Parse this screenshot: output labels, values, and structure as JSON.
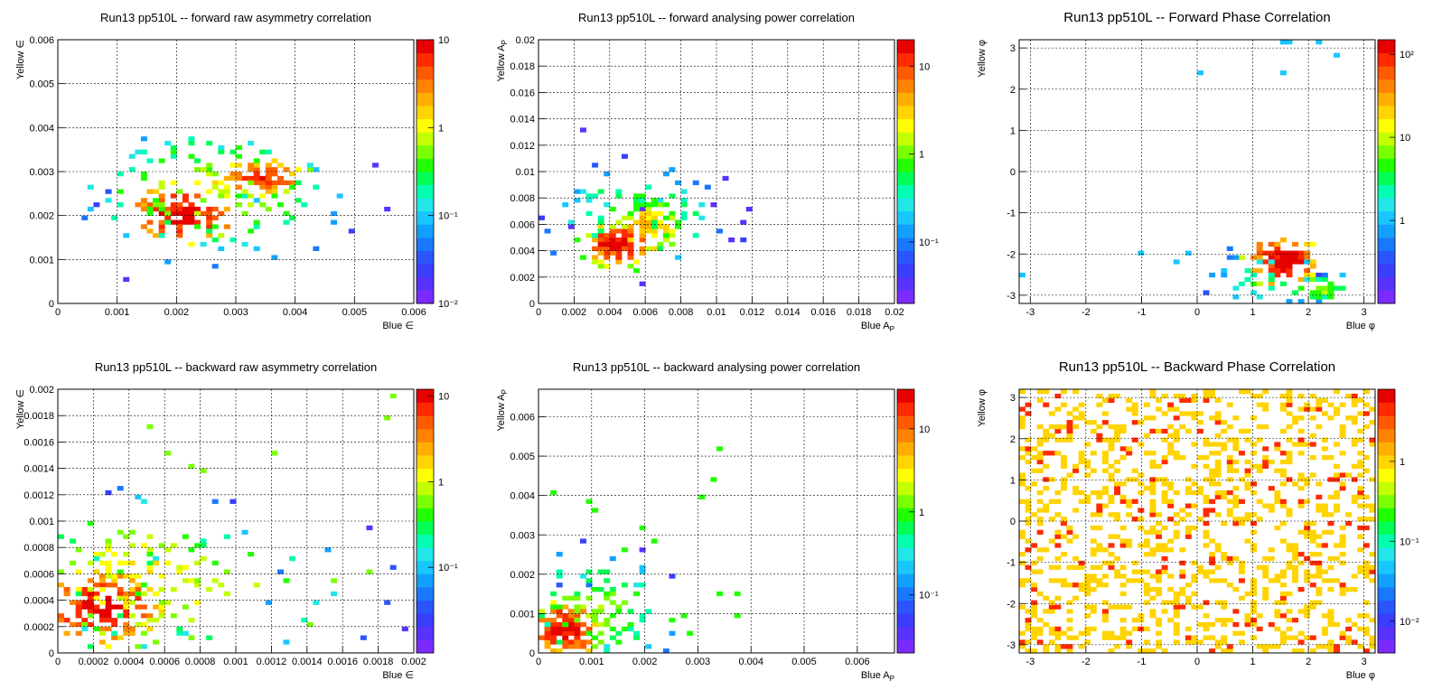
{
  "colors": {
    "palette": [
      "#7b2bff",
      "#5a32ff",
      "#3b3dff",
      "#2a55ff",
      "#1a78ff",
      "#12a0ff",
      "#19c6ff",
      "#22e6e8",
      "#00ffb0",
      "#00ff55",
      "#22ff00",
      "#7aff00",
      "#c4ff00",
      "#ffff00",
      "#ffd400",
      "#ffae00",
      "#ff8200",
      "#ff5a00",
      "#ff2a00",
      "#e60000"
    ],
    "grid": "#000000",
    "frame": "#000000"
  },
  "chart_data": [
    {
      "type": "heatmap",
      "title": "Run13 pp510L -- forward raw asymmetry correlation",
      "xlabel": "Blue ∈",
      "ylabel": "Yellow ∈",
      "xlim": [
        0,
        0.006
      ],
      "ylim": [
        0,
        0.006
      ],
      "x_ticks": [
        "0",
        "0.001",
        "0.002",
        "0.003",
        "0.004",
        "0.005",
        "0.006"
      ],
      "y_ticks": [
        "0",
        "0.001",
        "0.002",
        "0.003",
        "0.004",
        "0.005",
        "0.006"
      ],
      "z_scale": "log",
      "zlim": [
        0.01,
        10
      ],
      "z_ticks": [
        {
          "value": 10,
          "label": "10"
        },
        {
          "value": 1,
          "label": "1"
        },
        {
          "value": 0.1,
          "label": "10⁻¹"
        },
        {
          "value": 0.01,
          "label": "10⁻²"
        }
      ],
      "grid": true,
      "legend": "colorbar-right",
      "clusters": [
        {
          "x": 0.0021,
          "y": 0.00205,
          "sx": 0.00045,
          "sy": 0.00035,
          "peak": 9,
          "n": 90
        },
        {
          "x": 0.0034,
          "y": 0.00285,
          "sx": 0.0004,
          "sy": 0.0002,
          "peak": 6,
          "n": 60
        },
        {
          "x": 0.0026,
          "y": 0.0025,
          "sx": 0.001,
          "sy": 0.0007,
          "peak": 0.8,
          "n": 120
        }
      ]
    },
    {
      "type": "heatmap",
      "title": "Run13 pp510L -- forward analysing power correlation",
      "xlabel": "Blue A_P",
      "ylabel": "Yellow A_P",
      "xlim": [
        0,
        0.02
      ],
      "ylim": [
        0,
        0.02
      ],
      "x_ticks": [
        "0",
        "0.002",
        "0.004",
        "0.006",
        "0.008",
        "0.01",
        "0.012",
        "0.014",
        "0.016",
        "0.018",
        "0.02"
      ],
      "y_ticks": [
        "0",
        "0.002",
        "0.004",
        "0.006",
        "0.008",
        "0.01",
        "0.012",
        "0.014",
        "0.016",
        "0.018",
        "0.02"
      ],
      "z_scale": "log",
      "zlim": [
        0.02,
        20
      ],
      "z_ticks": [
        {
          "value": 10,
          "label": "10"
        },
        {
          "value": 1,
          "label": "1"
        },
        {
          "value": 0.1,
          "label": "10⁻¹"
        }
      ],
      "grid": true,
      "legend": "colorbar-right",
      "clusters": [
        {
          "x": 0.0045,
          "y": 0.0045,
          "sx": 0.001,
          "sy": 0.0008,
          "peak": 15,
          "n": 90
        },
        {
          "x": 0.006,
          "y": 0.0058,
          "sx": 0.0013,
          "sy": 0.001,
          "peak": 4,
          "n": 70
        },
        {
          "x": 0.0055,
          "y": 0.0065,
          "sx": 0.0025,
          "sy": 0.002,
          "peak": 0.8,
          "n": 90
        }
      ]
    },
    {
      "type": "heatmap",
      "title": "Run13 pp510L -- Forward Phase Correlation",
      "xlabel": "Blue φ",
      "ylabel": "Yellow φ",
      "xlim": [
        -3.2,
        3.2
      ],
      "ylim": [
        -3.2,
        3.2
      ],
      "x_ticks": [
        "-3",
        "-2",
        "-1",
        "0",
        "1",
        "2",
        "3"
      ],
      "y_ticks": [
        "-3",
        "-2",
        "-1",
        "0",
        "1",
        "2",
        "3"
      ],
      "z_scale": "log",
      "zlim": [
        0.1,
        150
      ],
      "z_ticks": [
        {
          "value": 100,
          "label": "10²"
        },
        {
          "value": 10,
          "label": "10"
        },
        {
          "value": 1,
          "label": "1"
        }
      ],
      "grid": true,
      "legend": "colorbar-right",
      "clusters": [
        {
          "x": 1.55,
          "y": -2.15,
          "sx": 0.3,
          "sy": 0.3,
          "peak": 140,
          "n": 90
        },
        {
          "x": 2.2,
          "y": -2.85,
          "sx": 0.25,
          "sy": 0.15,
          "peak": 8,
          "n": 30
        },
        {
          "x": 1.3,
          "y": -2.6,
          "sx": 0.6,
          "sy": 0.4,
          "peak": 3,
          "n": 40
        }
      ],
      "points": [
        [
          0.05,
          2.35,
          1.2
        ],
        [
          1.55,
          2.45,
          1.2
        ],
        [
          2.5,
          2.85,
          1.2
        ],
        [
          1.5,
          3.1,
          1.2
        ],
        [
          1.65,
          3.1,
          1.2
        ],
        [
          2.15,
          3.1,
          1.2
        ],
        [
          -1.0,
          -1.95,
          1.2
        ],
        [
          -0.4,
          -2.15,
          1.2
        ],
        [
          -0.2,
          -1.95,
          1.2
        ],
        [
          -3.1,
          -2.55,
          1.2
        ],
        [
          0.5,
          -2.35,
          1.2
        ],
        [
          2.6,
          -2.55,
          1.2
        ],
        [
          1.0,
          -2.95,
          1.5
        ]
      ]
    },
    {
      "type": "heatmap",
      "title": "Run13 pp510L -- backward raw asymmetry correlation",
      "xlabel": "Blue ∈",
      "ylabel": "Yellow ∈",
      "xlim": [
        0,
        0.002
      ],
      "ylim": [
        0,
        0.002
      ],
      "x_ticks": [
        "0",
        "0.0002",
        "0.0004",
        "0.0006",
        "0.0008",
        "0.001",
        "0.0012",
        "0.0014",
        "0.0016",
        "0.0018",
        "0.002"
      ],
      "y_ticks": [
        "0",
        "0.0002",
        "0.0004",
        "0.0006",
        "0.0008",
        "0.001",
        "0.0012",
        "0.0014",
        "0.0016",
        "0.0018",
        "0.002"
      ],
      "z_scale": "log",
      "zlim": [
        0.01,
        12
      ],
      "z_ticks": [
        {
          "value": 10,
          "label": "10"
        },
        {
          "value": 1,
          "label": "1"
        },
        {
          "value": 0.1,
          "label": "10⁻¹"
        }
      ],
      "grid": true,
      "legend": "colorbar-right",
      "clusters": [
        {
          "x": 0.00025,
          "y": 0.00035,
          "sx": 0.00018,
          "sy": 0.00015,
          "peak": 10,
          "n": 120
        },
        {
          "x": 0.00045,
          "y": 0.0005,
          "sx": 0.0003,
          "sy": 0.0003,
          "peak": 1.5,
          "n": 120
        },
        {
          "x": 0.0008,
          "y": 0.0005,
          "sx": 0.00045,
          "sy": 0.0003,
          "peak": 0.7,
          "n": 60
        }
      ],
      "points": [
        [
          0.00188,
          0.00194,
          0.7
        ],
        [
          0.00185,
          0.00178,
          0.7
        ],
        [
          0.0005,
          0.00171,
          0.7
        ],
        [
          0.00075,
          0.00143,
          0.7
        ],
        [
          0.0008,
          0.00138,
          0.7
        ],
        [
          0.0006,
          0.0015,
          0.7
        ],
        [
          0.00122,
          0.0015,
          0.7
        ],
        [
          0.00155,
          0.00055,
          0.7
        ],
        [
          0.0014,
          0.0002,
          0.7
        ],
        [
          0.00175,
          0.0006,
          0.7
        ]
      ]
    },
    {
      "type": "heatmap",
      "title": "Run13 pp510L -- backward analysing power correlation",
      "xlabel": "Blue A_P",
      "ylabel": "Yellow A_P",
      "xlim": [
        0,
        0.0067
      ],
      "ylim": [
        0,
        0.0067
      ],
      "x_ticks": [
        "0",
        "0.001",
        "0.002",
        "0.003",
        "0.004",
        "0.005",
        "0.006"
      ],
      "y_ticks": [
        "0",
        "0.001",
        "0.002",
        "0.003",
        "0.004",
        "0.005",
        "0.006"
      ],
      "z_scale": "log",
      "zlim": [
        0.02,
        30
      ],
      "z_ticks": [
        {
          "value": 10,
          "label": "10"
        },
        {
          "value": 1,
          "label": "1"
        },
        {
          "value": 0.1,
          "label": "10⁻¹"
        }
      ],
      "grid": true,
      "legend": "colorbar-right",
      "clusters": [
        {
          "x": 0.0005,
          "y": 0.0006,
          "sx": 0.0003,
          "sy": 0.00035,
          "peak": 25,
          "n": 100
        },
        {
          "x": 0.001,
          "y": 0.001,
          "sx": 0.0007,
          "sy": 0.0007,
          "peak": 1.5,
          "n": 120
        }
      ],
      "points": [
        [
          0.0034,
          0.0052,
          0.9
        ],
        [
          0.00325,
          0.0044,
          0.9
        ],
        [
          0.0031,
          0.004,
          0.9
        ],
        [
          0.00095,
          0.00385,
          0.9
        ],
        [
          0.00105,
          0.0036,
          0.9
        ],
        [
          0.00195,
          0.00315,
          0.9
        ],
        [
          0.0022,
          0.0028,
          0.9
        ],
        [
          0.0003,
          0.0041,
          0.9
        ],
        [
          0.00165,
          0.0026,
          0.9
        ],
        [
          0.0037,
          0.0015,
          0.9
        ],
        [
          0.00345,
          0.0015,
          0.9
        ],
        [
          0.0037,
          0.0009,
          0.9
        ],
        [
          0.00275,
          0.0009,
          0.9
        ],
        [
          0.0025,
          0.0008,
          0.9
        ],
        [
          0.0028,
          0.0005,
          0.9
        ],
        [
          0.0017,
          0.0007,
          0.9
        ]
      ]
    },
    {
      "type": "heatmap",
      "title": "Run13 pp510L -- Backward Phase Correlation",
      "xlabel": "Blue φ",
      "ylabel": "Yellow φ",
      "xlim": [
        -3.2,
        3.2
      ],
      "ylim": [
        -3.2,
        3.2
      ],
      "x_ticks": [
        "-3",
        "-2",
        "-1",
        "0",
        "1",
        "2",
        "3"
      ],
      "y_ticks": [
        "-3",
        "-2",
        "-1",
        "0",
        "1",
        "2",
        "3"
      ],
      "z_scale": "log",
      "zlim": [
        0.004,
        8
      ],
      "z_ticks": [
        {
          "value": 1,
          "label": "1"
        },
        {
          "value": 0.1,
          "label": "10⁻¹"
        },
        {
          "value": 0.01,
          "label": "10⁻²"
        }
      ],
      "grid": true,
      "legend": "colorbar-right",
      "uniform": {
        "fill": 0.3,
        "hot_fraction": 0.16,
        "low": 0.9,
        "high": 4.5
      }
    }
  ]
}
